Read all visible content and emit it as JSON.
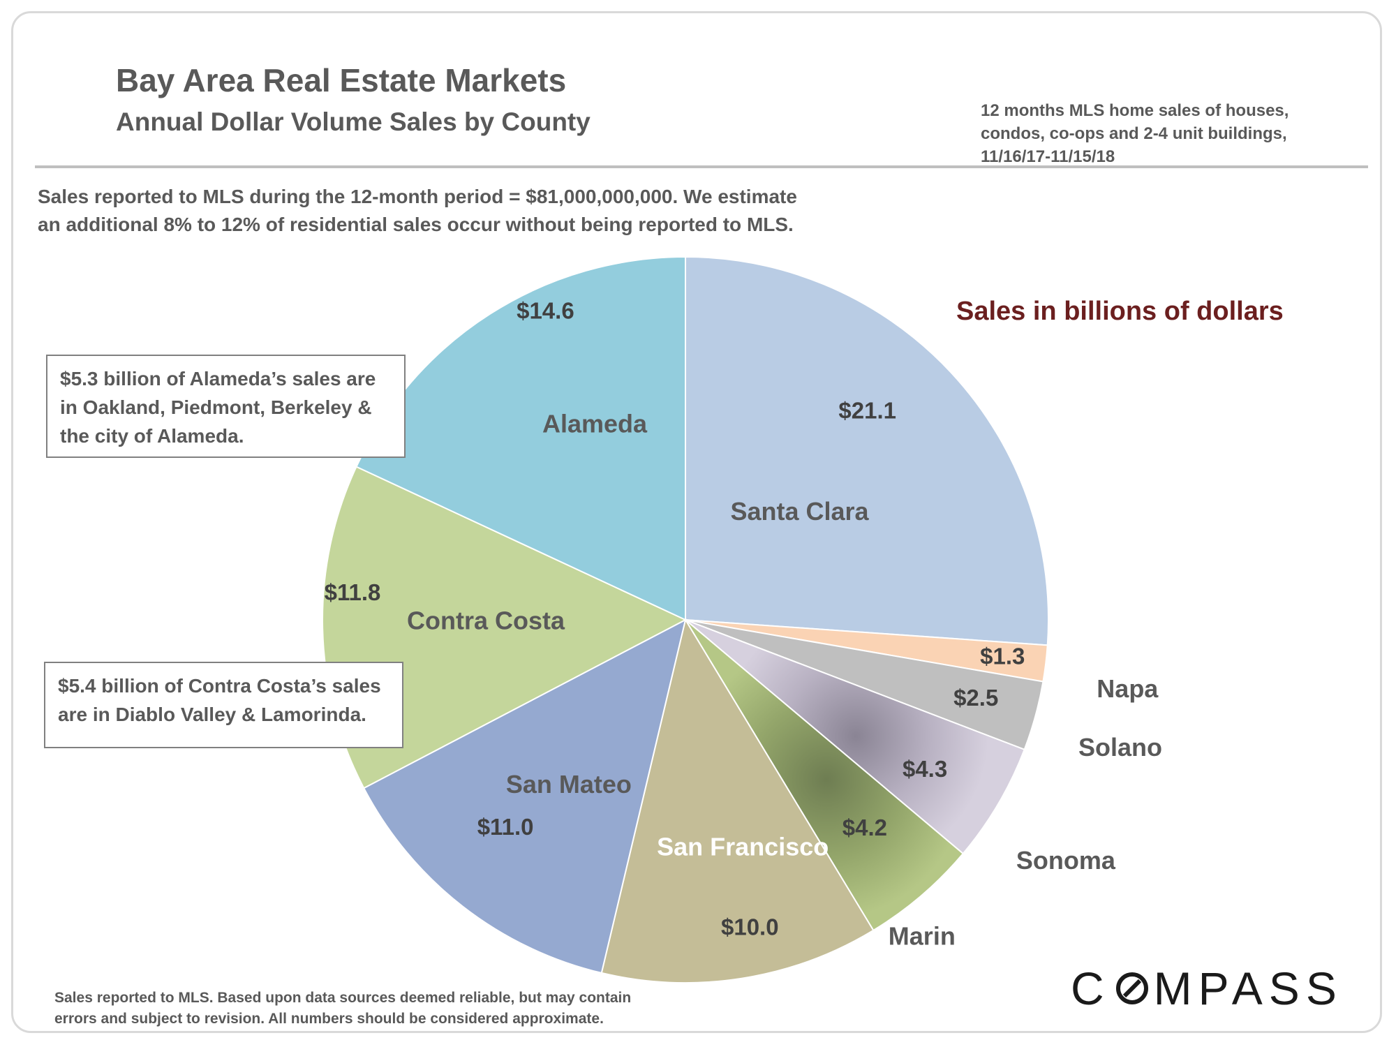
{
  "title": "Bay Area Real Estate Markets",
  "subtitle": "Annual Dollar Volume Sales by County",
  "source_lines": [
    "12 months MLS home sales of houses,",
    "condos, co-ops and 2-4 unit buildings,",
    "11/16/17-11/15/18"
  ],
  "intro_lines": [
    "Sales reported to MLS during the 12-month period = $81,000,000,000. We estimate",
    "an additional 8% to 12% of residential sales occur without being reported to MLS."
  ],
  "units_label": "Sales in billions of dollars",
  "notes": {
    "alameda": [
      "$5.3 billion of Alameda’s sales are",
      "in Oakland, Piedmont, Berkeley &",
      "the city of Alameda."
    ],
    "contra_costa": [
      "$5.4 billion of Contra Costa’s sales",
      "are in Diablo Valley & Lamorinda."
    ]
  },
  "footer_lines": [
    "Sales reported to MLS. Based upon data sources deemed reliable, but may contain",
    "errors and  subject to revision. All numbers should be considered approximate."
  ],
  "logo": {
    "before": "C",
    "after": "MPASS"
  },
  "chart_data": {
    "type": "pie",
    "title": "Annual Dollar Volume Sales by County",
    "units": "billions of dollars",
    "start_angle_deg": 0,
    "direction": "clockwise",
    "slices": [
      {
        "name": "Santa Clara",
        "value": 21.1,
        "label": "$21.1",
        "color": "#b9cce4",
        "name_color": "#595959"
      },
      {
        "name": "Napa",
        "value": 1.3,
        "label": "$1.3",
        "color": "#fad3b4",
        "name_color": "#595959"
      },
      {
        "name": "Solano",
        "value": 2.5,
        "label": "$2.5",
        "color": "#bfbfbf",
        "name_color": "#595959"
      },
      {
        "name": "Sonoma",
        "value": 4.3,
        "label": "$4.3",
        "color": "#d6d0de",
        "name_color": "#595959"
      },
      {
        "name": "Marin",
        "value": 4.2,
        "label": "$4.2",
        "color": "#b5c786",
        "name_color": "#595959"
      },
      {
        "name": "San Francisco",
        "value": 10.0,
        "label": "$10.0",
        "color": "#c4bd97",
        "name_color": "#ffffff"
      },
      {
        "name": "San Mateo",
        "value": 11.0,
        "label": "$11.0",
        "color": "#95a9d0",
        "name_color": "#595959"
      },
      {
        "name": "Contra Costa",
        "value": 11.8,
        "label": "$11.8",
        "color": "#c4d69b",
        "name_color": "#595959"
      },
      {
        "name": "Alameda",
        "value": 14.6,
        "label": "$14.6",
        "color": "#93cddd",
        "name_color": "#595959"
      }
    ]
  }
}
